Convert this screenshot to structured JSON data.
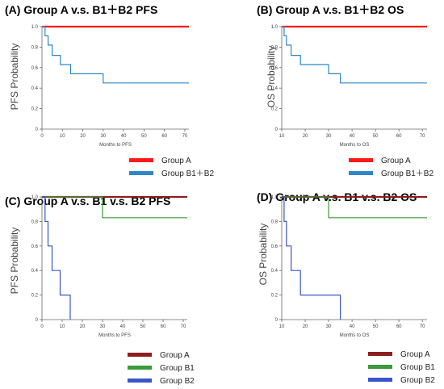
{
  "chart_data": [
    {
      "type": "line",
      "panel_title": "(A)  Group A v.s. B1＋B2  PFS",
      "xlabel": "Months to PFS",
      "ylabel": "PFS Probability",
      "xlim": [
        0,
        72
      ],
      "ylim": [
        0,
        1.0
      ],
      "x_ticks": [
        0,
        10,
        20,
        30,
        40,
        50,
        60,
        70
      ],
      "y_ticks": [
        0,
        0.2,
        0.4,
        0.6,
        0.8,
        1.0
      ],
      "legend_placement": "bottom-right",
      "series": [
        {
          "name": "Group A",
          "color": "#ff1a1a",
          "x": [
            0,
            72
          ],
          "y": [
            1.0,
            1.0
          ]
        },
        {
          "name": "Group B1＋B2",
          "color": "#2f86c8",
          "x": [
            0,
            1.5,
            1.5,
            3,
            3,
            5,
            5,
            9,
            9,
            14,
            14,
            30,
            30,
            72
          ],
          "y": [
            1.0,
            1.0,
            0.91,
            0.91,
            0.82,
            0.82,
            0.72,
            0.72,
            0.63,
            0.63,
            0.54,
            0.54,
            0.45,
            0.45
          ]
        }
      ]
    },
    {
      "type": "line",
      "panel_title": "(B)  Group A v.s. B1＋B2  OS",
      "xlabel": "Months to OS",
      "ylabel": "OS Probability",
      "xlim": [
        10,
        72
      ],
      "ylim": [
        0,
        1.0
      ],
      "x_ticks": [
        10,
        20,
        30,
        40,
        50,
        60,
        70
      ],
      "y_ticks": [
        0,
        0.2,
        0.4,
        0.6,
        0.8,
        1.0
      ],
      "legend_placement": "bottom-right",
      "series": [
        {
          "name": "Group A",
          "color": "#ff1a1a",
          "x": [
            10,
            72
          ],
          "y": [
            1.0,
            1.0
          ]
        },
        {
          "name": "Group B1＋B2",
          "color": "#2f86c8",
          "x": [
            10,
            11,
            11,
            12,
            12,
            14,
            14,
            18,
            18,
            30,
            30,
            35,
            35,
            72
          ],
          "y": [
            1.0,
            1.0,
            0.91,
            0.91,
            0.82,
            0.82,
            0.72,
            0.72,
            0.63,
            0.63,
            0.54,
            0.54,
            0.45,
            0.45
          ]
        }
      ]
    },
    {
      "type": "line",
      "panel_title": "(C)  Group A v.s. B1 v.s. B2 PFS",
      "xlabel": "Months to PFS",
      "ylabel": "PFS Probability",
      "xlim": [
        0,
        72
      ],
      "ylim": [
        0,
        1.0
      ],
      "x_ticks": [
        0,
        10,
        20,
        30,
        40,
        50,
        60,
        70
      ],
      "y_ticks": [
        0,
        0.2,
        0.4,
        0.6,
        0.8,
        1.0
      ],
      "legend_placement": "bottom-right",
      "series": [
        {
          "name": "Group A",
          "color": "#8b1f1f",
          "x": [
            0,
            72
          ],
          "y": [
            1.0,
            1.0
          ]
        },
        {
          "name": "Group B1",
          "color": "#3b9a3b",
          "x": [
            0,
            30,
            30,
            72
          ],
          "y": [
            1.0,
            1.0,
            0.83,
            0.83
          ]
        },
        {
          "name": "Group B2",
          "color": "#3a56c8",
          "x": [
            0,
            1.5,
            1.5,
            3,
            3,
            5,
            5,
            9,
            9,
            14,
            14
          ],
          "y": [
            1.0,
            1.0,
            0.8,
            0.8,
            0.6,
            0.6,
            0.4,
            0.4,
            0.2,
            0.2,
            0
          ]
        }
      ]
    },
    {
      "type": "line",
      "panel_title": "(D)  Group A v.s. B1 v.s. B2 OS",
      "xlabel": "Months to OS",
      "ylabel": "OS Probability",
      "xlim": [
        10,
        72
      ],
      "ylim": [
        0,
        1.0
      ],
      "x_ticks": [
        10,
        20,
        30,
        40,
        50,
        60,
        70
      ],
      "y_ticks": [
        0,
        0.2,
        0.4,
        0.6,
        0.8,
        1.0
      ],
      "legend_placement": "bottom-right",
      "series": [
        {
          "name": "Group A",
          "color": "#8b1f1f",
          "x": [
            10,
            72
          ],
          "y": [
            1.0,
            1.0
          ]
        },
        {
          "name": "Group B1",
          "color": "#3b9a3b",
          "x": [
            10,
            30,
            30,
            72
          ],
          "y": [
            1.0,
            1.0,
            0.83,
            0.83
          ]
        },
        {
          "name": "Group B2",
          "color": "#3a56c8",
          "x": [
            10,
            11,
            11,
            12,
            12,
            14,
            14,
            18,
            18,
            35,
            35
          ],
          "y": [
            1.0,
            1.0,
            0.8,
            0.8,
            0.6,
            0.6,
            0.4,
            0.4,
            0.2,
            0.2,
            0
          ]
        }
      ]
    }
  ]
}
